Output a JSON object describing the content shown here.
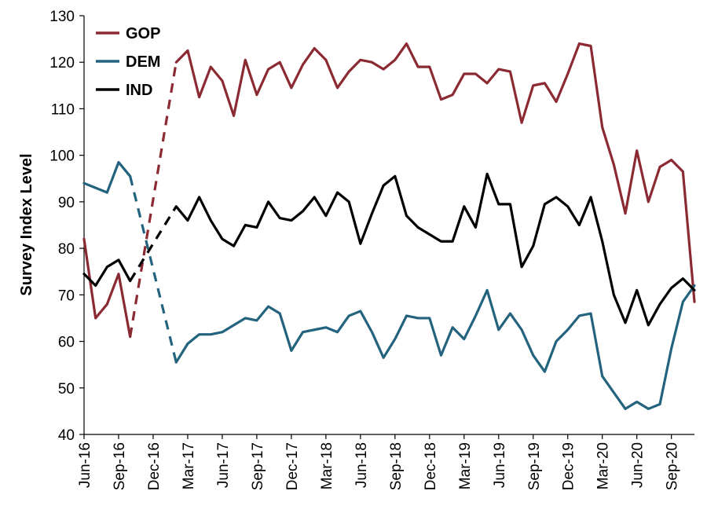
{
  "chart_data": {
    "type": "line",
    "ylabel": "Survey Index Level",
    "xlabel": "",
    "ylim": [
      40,
      130
    ],
    "yticks": [
      40,
      50,
      60,
      70,
      80,
      90,
      100,
      110,
      120,
      130
    ],
    "x": [
      "Jun-16",
      "Jul-16",
      "Aug-16",
      "Sep-16",
      "Oct-16",
      "Nov-16",
      "Dec-16",
      "Jan-17",
      "Feb-17",
      "Mar-17",
      "Apr-17",
      "May-17",
      "Jun-17",
      "Jul-17",
      "Aug-17",
      "Sep-17",
      "Oct-17",
      "Nov-17",
      "Dec-17",
      "Jan-18",
      "Feb-18",
      "Mar-18",
      "Apr-18",
      "May-18",
      "Jun-18",
      "Jul-18",
      "Aug-18",
      "Sep-18",
      "Oct-18",
      "Nov-18",
      "Dec-18",
      "Jan-19",
      "Feb-19",
      "Mar-19",
      "Apr-19",
      "May-19",
      "Jun-19",
      "Jul-19",
      "Aug-19",
      "Sep-19",
      "Oct-19",
      "Nov-19",
      "Dec-19",
      "Jan-20",
      "Feb-20",
      "Mar-20",
      "Apr-20",
      "May-20",
      "Jun-20",
      "Jul-20",
      "Aug-20",
      "Sep-20",
      "Oct-20",
      "Nov-20"
    ],
    "xticklabels": [
      "Jun-16",
      "Sep-16",
      "Dec-16",
      "Mar-17",
      "Jun-17",
      "Sep-17",
      "Dec-17",
      "Mar-18",
      "Jun-18",
      "Sep-18",
      "Dec-18",
      "Mar-19",
      "Jun-19",
      "Sep-19",
      "Dec-19",
      "Mar-20",
      "Jun-20",
      "Sep-20"
    ],
    "legend_position": "top-left",
    "grid": false,
    "dashed_segments": {
      "from": "Oct-16",
      "to": "Feb-17",
      "note": "missing Nov-16 to Jan-17; GOP, DEM and IND drawn dashed between Oct-16 and Feb-17"
    },
    "series": [
      {
        "name": "GOP",
        "color": "#8B2A33",
        "values": [
          82,
          65,
          68,
          74.5,
          61,
          null,
          null,
          null,
          120,
          122.5,
          112.5,
          119,
          116,
          108.5,
          120.5,
          113,
          118.5,
          120,
          114.5,
          119.5,
          123,
          120.5,
          114.5,
          118,
          120.5,
          120,
          118.5,
          120.5,
          124,
          119,
          119,
          112,
          113,
          117.5,
          117.5,
          115.5,
          118.5,
          118,
          107,
          115,
          115.5,
          111.5,
          117.5,
          124,
          123.5,
          106,
          98,
          87.5,
          101,
          90,
          97.5,
          99,
          96.5,
          68.5
        ]
      },
      {
        "name": "DEM",
        "color": "#23637E",
        "values": [
          94,
          93,
          92,
          98.5,
          95.5,
          null,
          null,
          null,
          55.5,
          59.5,
          61.5,
          61.5,
          62,
          63.5,
          65,
          64.5,
          67.5,
          66,
          58,
          62,
          62.5,
          63,
          62,
          65.5,
          66.5,
          62,
          56.5,
          60.5,
          65.5,
          65,
          65,
          57,
          63,
          60.5,
          65.5,
          71,
          62.5,
          66,
          62.5,
          57,
          53.5,
          60,
          62.5,
          65.5,
          66,
          52.5,
          49,
          45.5,
          47,
          45.5,
          46.5,
          58.5,
          68.5,
          72
        ]
      },
      {
        "name": "IND",
        "color": "#000000",
        "values": [
          74.5,
          72,
          76,
          77.5,
          73,
          null,
          null,
          null,
          89,
          86,
          91,
          86,
          82,
          80.5,
          85,
          84.5,
          90,
          86.5,
          86,
          88,
          91,
          87,
          92,
          90,
          81,
          87.5,
          93.5,
          95.5,
          87,
          84.5,
          83,
          81.5,
          81.5,
          89,
          84.5,
          96,
          89.5,
          89.5,
          76,
          80.5,
          89.5,
          91,
          89,
          85,
          91,
          81.5,
          70,
          64,
          71,
          63.5,
          68,
          71.5,
          73.5,
          71
        ]
      }
    ]
  }
}
